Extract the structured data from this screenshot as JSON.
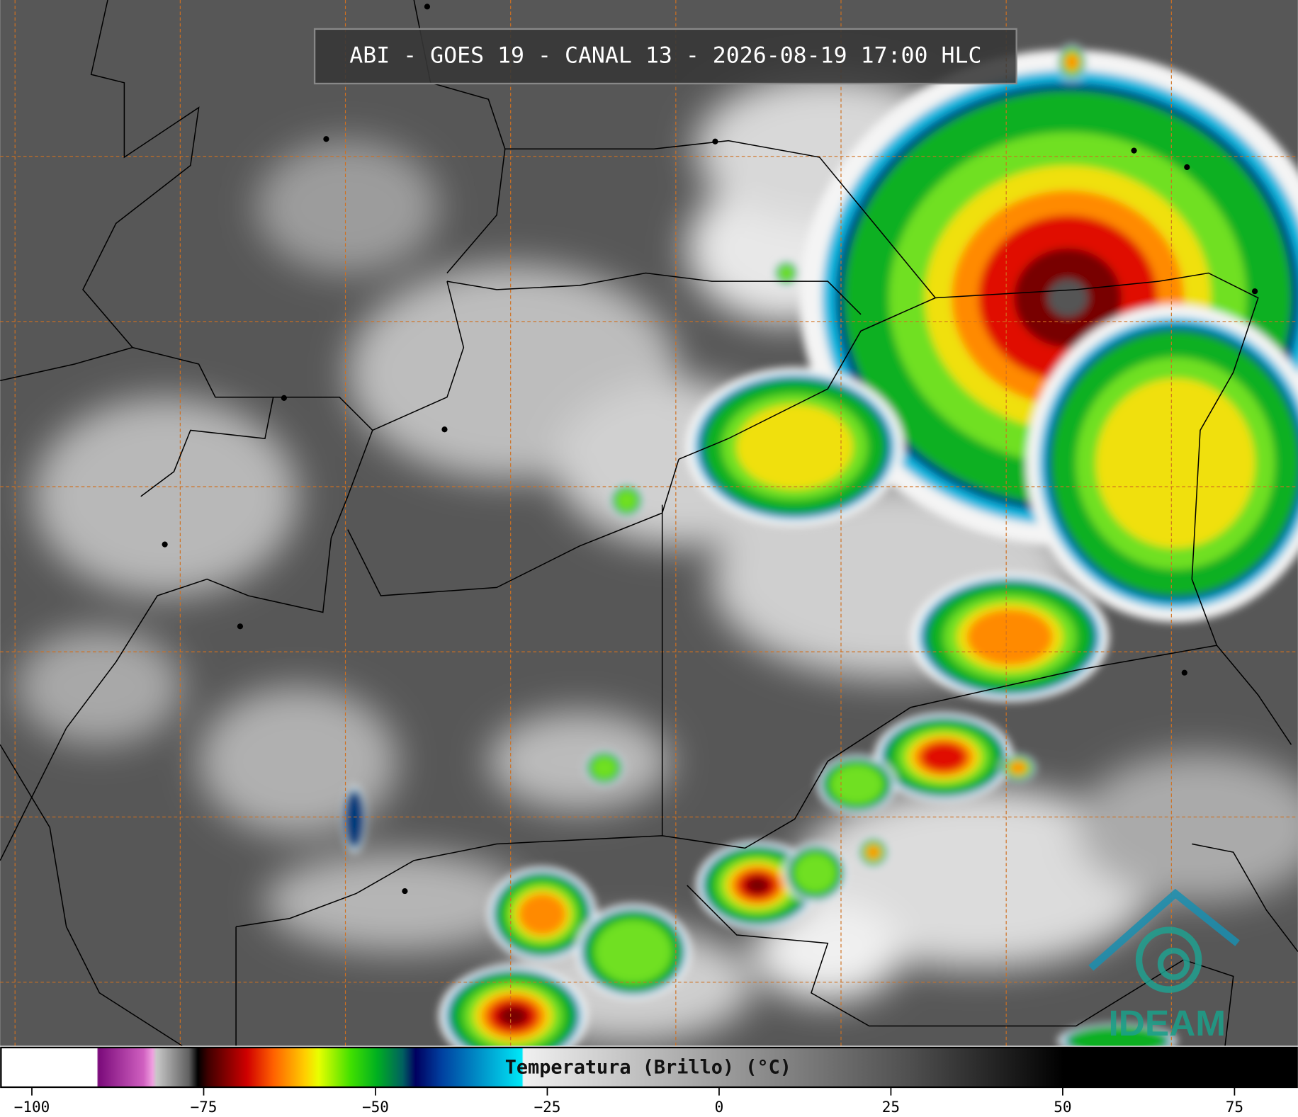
{
  "header": {
    "title": "ABI - GOES 19 - CANAL 13 - 2026-08-19 17:00 HLC"
  },
  "colorbar": {
    "label": "Temperatura (Brillo) (°C)",
    "range": [
      -104.5,
      84.1
    ],
    "ticks": [
      {
        "value": -100,
        "label": "−100"
      },
      {
        "value": -75,
        "label": "−75"
      },
      {
        "value": -50,
        "label": "−50"
      },
      {
        "value": -25,
        "label": "−25"
      },
      0,
      25,
      50,
      75
    ]
  },
  "logo": {
    "text": "IDEAM"
  }
}
